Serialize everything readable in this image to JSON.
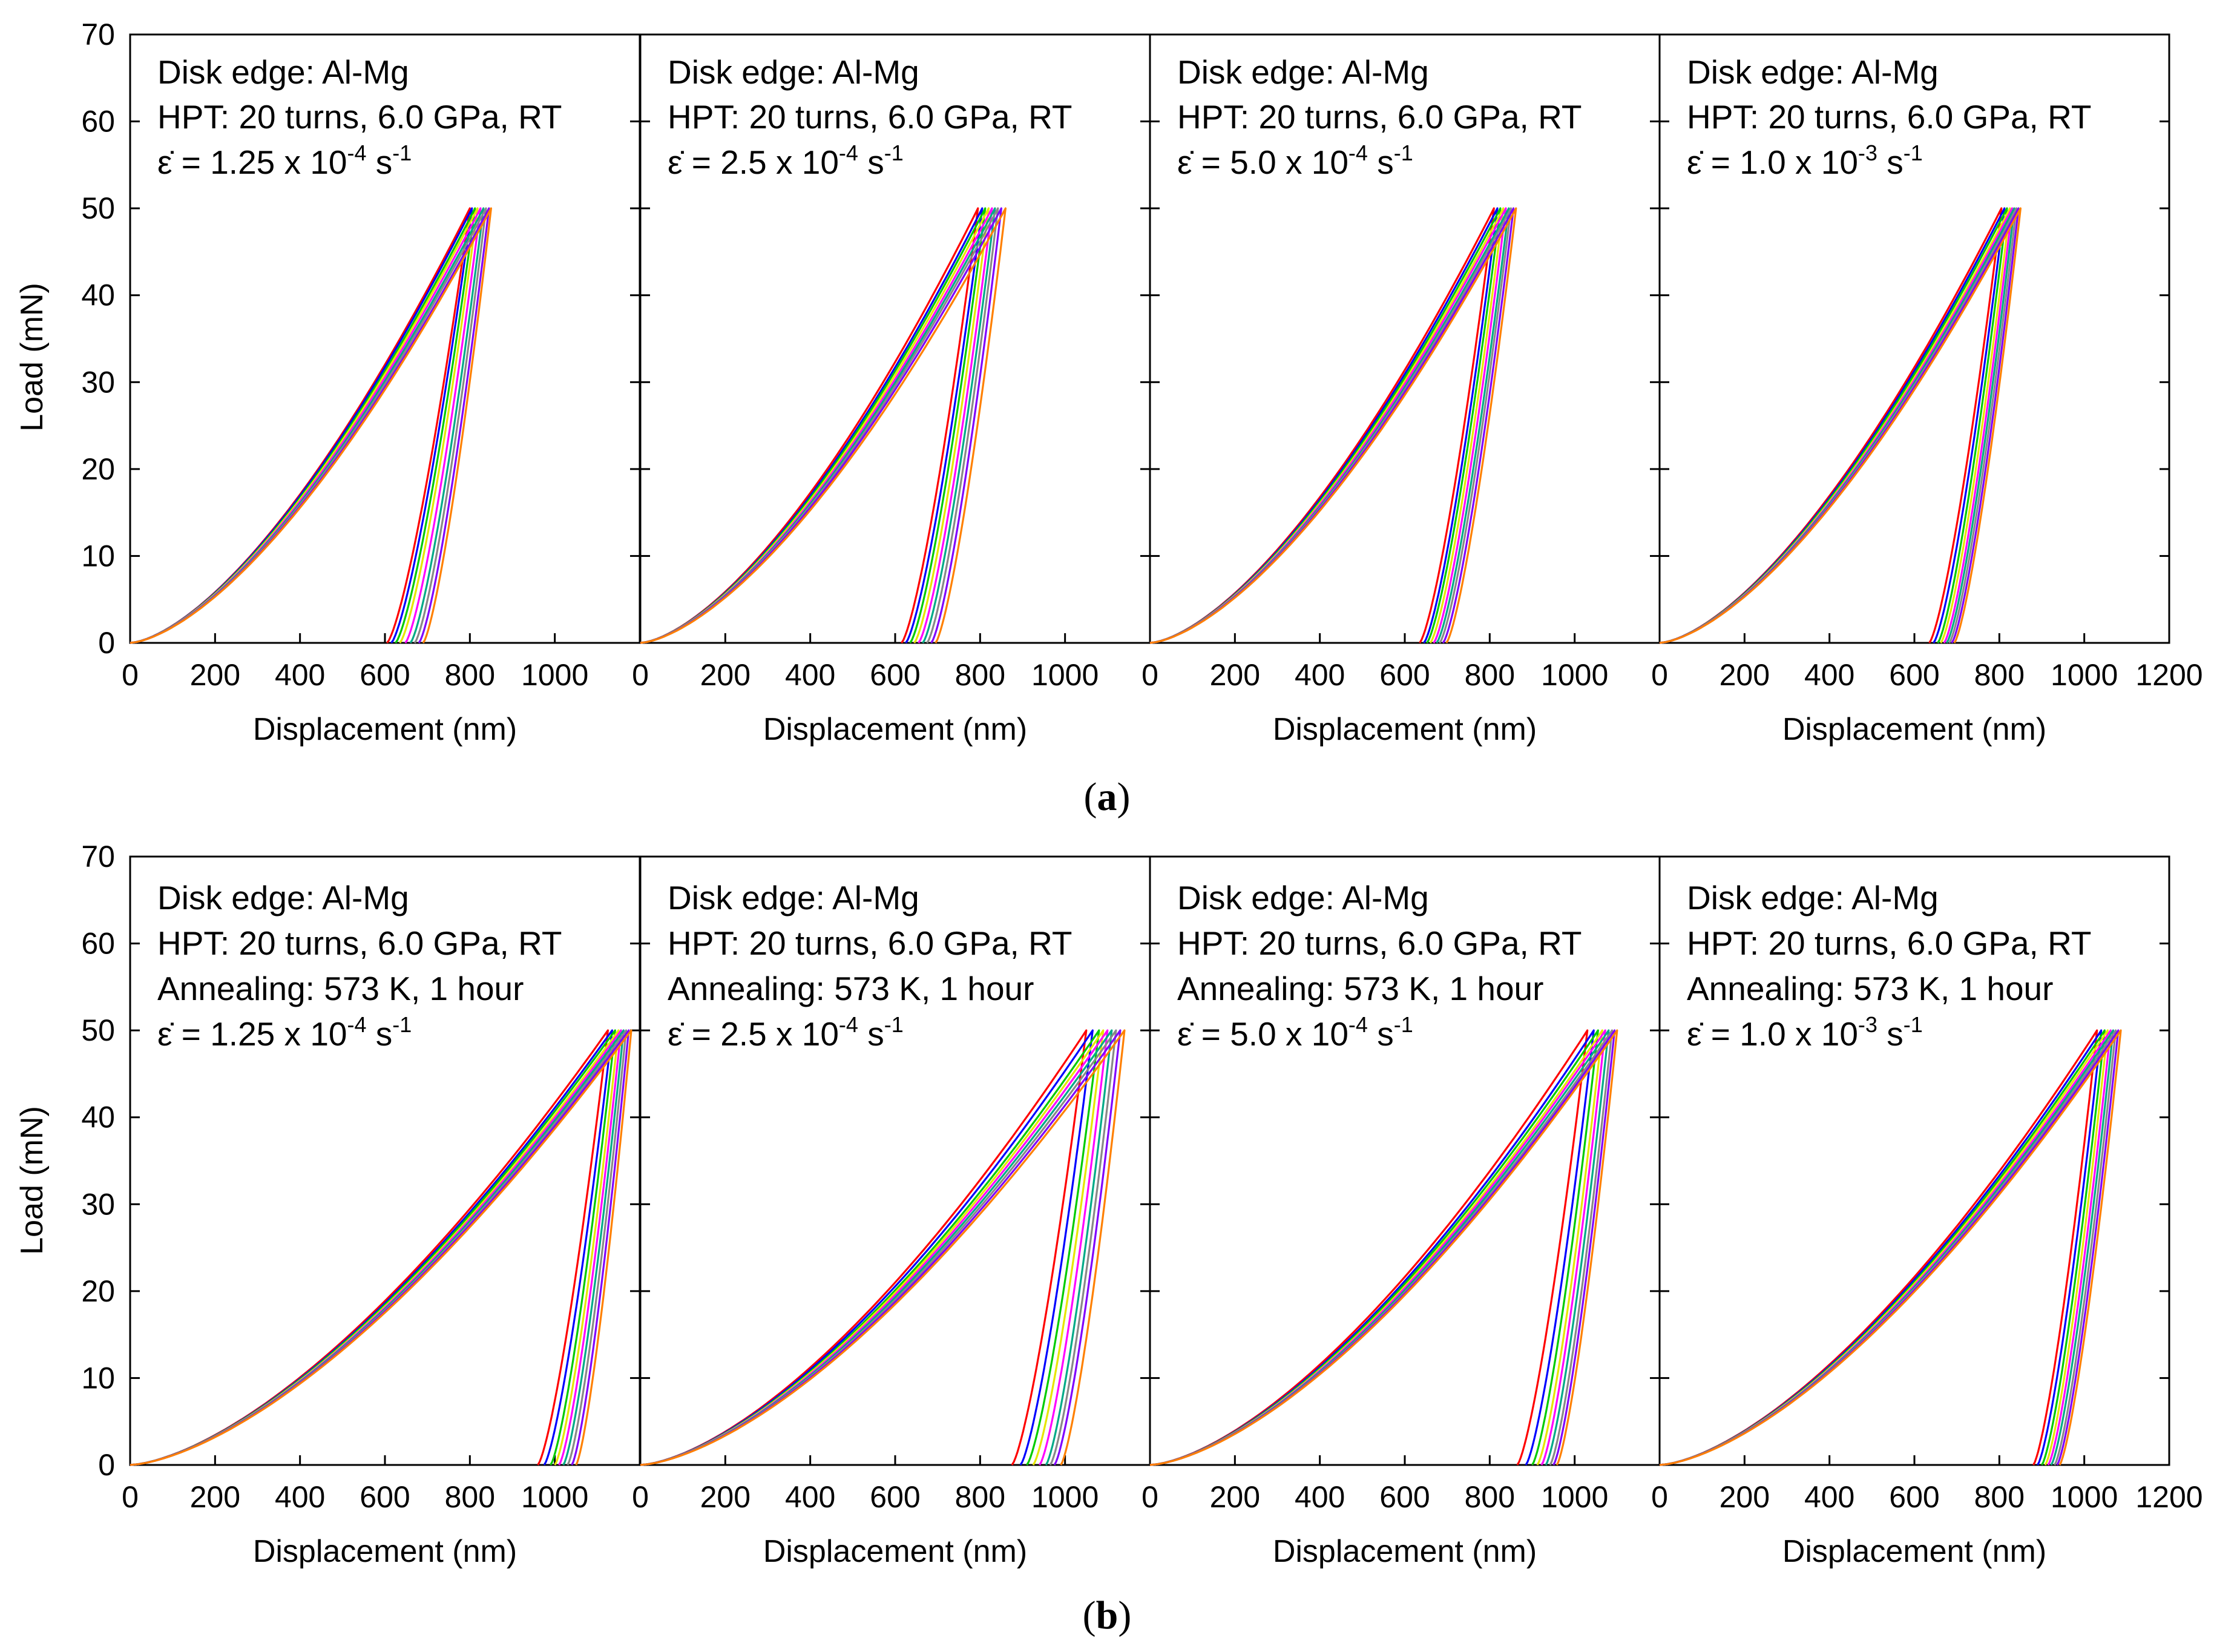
{
  "colors": [
    "#ff0000",
    "#0000ff",
    "#00cc00",
    "#e6e600",
    "#ff00ff",
    "#00aa88",
    "#888888",
    "#8000ff",
    "#ff8000",
    "#000000"
  ],
  "rows": [
    {
      "label_open": "(",
      "label_letter": "a",
      "label_close": ")",
      "ylabel": "Load (mN)",
      "xlabel": "Displacement (nm)"
    },
    {
      "label_open": "(",
      "label_letter": "b",
      "label_close": ")",
      "ylabel": "Load (mN)",
      "xlabel": "Displacement (nm)"
    }
  ],
  "chart_data": [
    {
      "type": "line",
      "row": 0,
      "col": 0,
      "title": "",
      "annotation": [
        "Disk edge: Al-Mg",
        "HPT: 20 turns, 6.0 GPa, RT"
      ],
      "rate": {
        "symbol": "ε̇",
        "prefix": " = 1.25 x 10",
        "exp": "-4",
        "unit": " s",
        "unit_exp": "-1"
      },
      "xlabel": "Displacement (nm)",
      "ylabel": "Load (mN)",
      "xlim": [
        0,
        1200
      ],
      "ylim": [
        0,
        70
      ],
      "xticks": [
        0,
        200,
        400,
        600,
        800,
        1000
      ],
      "yticks": [
        0,
        10,
        20,
        30,
        40,
        50,
        60,
        70
      ],
      "max_load": 50,
      "curves_max_depth": [
        800,
        805,
        812,
        818,
        825,
        832,
        838,
        845,
        850
      ],
      "curves_residual_depth": [
        605,
        615,
        625,
        635,
        648,
        660,
        670,
        680,
        690
      ]
    },
    {
      "type": "line",
      "row": 0,
      "col": 1,
      "title": "",
      "annotation": [
        "Disk edge: Al-Mg",
        "HPT: 20 turns, 6.0 GPa, RT"
      ],
      "rate": {
        "symbol": "ε̇",
        "prefix": " = 2.5 x 10",
        "exp": "-4",
        "unit": " s",
        "unit_exp": "-1"
      },
      "xlabel": "Displacement (nm)",
      "ylabel": "Load (mN)",
      "xlim": [
        0,
        1200
      ],
      "ylim": [
        0,
        70
      ],
      "xticks": [
        0,
        200,
        400,
        600,
        800,
        1000
      ],
      "yticks": [
        0,
        10,
        20,
        30,
        40,
        50,
        60,
        70
      ],
      "max_load": 50,
      "curves_max_depth": [
        795,
        805,
        812,
        820,
        828,
        835,
        842,
        850,
        860
      ],
      "curves_residual_depth": [
        615,
        625,
        635,
        645,
        655,
        665,
        675,
        685,
        695
      ]
    },
    {
      "type": "line",
      "row": 0,
      "col": 2,
      "title": "",
      "annotation": [
        "Disk edge: Al-Mg",
        "HPT: 20 turns, 6.0 GPa, RT"
      ],
      "rate": {
        "symbol": "ε̇",
        "prefix": " = 5.0 x 10",
        "exp": "-4",
        "unit": " s",
        "unit_exp": "-1"
      },
      "xlabel": "Displacement (nm)",
      "ylabel": "Load (mN)",
      "xlim": [
        0,
        1200
      ],
      "ylim": [
        0,
        70
      ],
      "xticks": [
        0,
        200,
        400,
        600,
        800,
        1000
      ],
      "yticks": [
        0,
        10,
        20,
        30,
        40,
        50,
        60,
        70
      ],
      "max_load": 50,
      "curves_max_depth": [
        810,
        818,
        825,
        832,
        838,
        845,
        850,
        856,
        862
      ],
      "curves_residual_depth": [
        635,
        645,
        652,
        660,
        668,
        675,
        682,
        690,
        698
      ]
    },
    {
      "type": "line",
      "row": 0,
      "col": 3,
      "title": "",
      "annotation": [
        "Disk edge: Al-Mg",
        "HPT: 20 turns, 6.0 GPa, RT"
      ],
      "rate": {
        "symbol": "ε̇",
        "prefix": " = 1.0 x 10",
        "exp": "-3",
        "unit": " s",
        "unit_exp": "-1"
      },
      "xlabel": "Displacement (nm)",
      "ylabel": "Load (mN)",
      "xlim": [
        0,
        1200
      ],
      "ylim": [
        0,
        70
      ],
      "xticks": [
        0,
        200,
        400,
        600,
        800,
        1000,
        1200
      ],
      "yticks": [
        0,
        10,
        20,
        30,
        40,
        50,
        60,
        70
      ],
      "max_load": 50,
      "curves_max_depth": [
        805,
        812,
        818,
        825,
        830,
        835,
        840,
        845,
        850
      ],
      "curves_residual_depth": [
        635,
        645,
        655,
        662,
        670,
        676,
        682,
        688,
        694
      ]
    },
    {
      "type": "line",
      "row": 1,
      "col": 0,
      "title": "",
      "annotation": [
        "Disk edge: Al-Mg",
        "HPT: 20 turns, 6.0 GPa, RT",
        "Annealing: 573 K, 1 hour"
      ],
      "rate": {
        "symbol": "ε̇",
        "prefix": " = 1.25 x 10",
        "exp": "-4",
        "unit": " s",
        "unit_exp": "-1"
      },
      "xlabel": "Displacement (nm)",
      "ylabel": "Load (mN)",
      "xlim": [
        0,
        1200
      ],
      "ylim": [
        0,
        70
      ],
      "xticks": [
        0,
        200,
        400,
        600,
        800,
        1000
      ],
      "yticks": [
        0,
        10,
        20,
        30,
        40,
        50,
        60,
        70
      ],
      "max_load": 50,
      "curves_max_depth": [
        1125,
        1135,
        1142,
        1150,
        1156,
        1162,
        1168,
        1174,
        1180
      ],
      "curves_residual_depth": [
        960,
        975,
        990,
        1000,
        1010,
        1020,
        1030,
        1040,
        1050
      ]
    },
    {
      "type": "line",
      "row": 1,
      "col": 1,
      "title": "",
      "annotation": [
        "Disk edge: Al-Mg",
        "HPT: 20 turns, 6.0 GPa, RT",
        "Annealing: 573 K, 1 hour"
      ],
      "rate": {
        "symbol": "ε̇",
        "prefix": " = 2.5 x 10",
        "exp": "-4",
        "unit": " s",
        "unit_exp": "-1"
      },
      "xlabel": "Displacement (nm)",
      "ylabel": "Load (mN)",
      "xlim": [
        0,
        1200
      ],
      "ylim": [
        0,
        70
      ],
      "xticks": [
        0,
        200,
        400,
        600,
        800,
        1000
      ],
      "yticks": [
        0,
        10,
        20,
        30,
        40,
        50,
        60,
        70
      ],
      "max_load": 50,
      "curves_max_depth": [
        1050,
        1065,
        1080,
        1090,
        1100,
        1110,
        1120,
        1130,
        1140
      ],
      "curves_residual_depth": [
        875,
        895,
        910,
        925,
        940,
        955,
        965,
        975,
        990
      ]
    },
    {
      "type": "line",
      "row": 1,
      "col": 2,
      "title": "",
      "annotation": [
        "Disk edge: Al-Mg",
        "HPT: 20 turns, 6.0 GPa, RT",
        "Annealing: 573 K, 1 hour"
      ],
      "rate": {
        "symbol": "ε̇",
        "prefix": " = 5.0 x 10",
        "exp": "-4",
        "unit": " s",
        "unit_exp": "-1"
      },
      "xlabel": "Displacement (nm)",
      "ylabel": "Load (mN)",
      "xlim": [
        0,
        1200
      ],
      "ylim": [
        0,
        70
      ],
      "xticks": [
        0,
        200,
        400,
        600,
        800,
        1000
      ],
      "yticks": [
        0,
        10,
        20,
        30,
        40,
        50,
        60,
        70
      ],
      "max_load": 50,
      "curves_max_depth": [
        1030,
        1045,
        1055,
        1065,
        1072,
        1080,
        1088,
        1094,
        1100
      ],
      "curves_residual_depth": [
        865,
        885,
        900,
        912,
        922,
        932,
        942,
        950,
        958
      ]
    },
    {
      "type": "line",
      "row": 1,
      "col": 3,
      "title": "",
      "annotation": [
        "Disk edge: Al-Mg",
        "HPT: 20 turns, 6.0 GPa, RT",
        "Annealing: 573 K, 1 hour"
      ],
      "rate": {
        "symbol": "ε̇",
        "prefix": " = 1.0 x 10",
        "exp": "-3",
        "unit": " s",
        "unit_exp": "-1"
      },
      "xlabel": "Displacement (nm)",
      "ylabel": "Load (mN)",
      "xlim": [
        0,
        1200
      ],
      "ylim": [
        0,
        70
      ],
      "xticks": [
        0,
        200,
        400,
        600,
        800,
        1000,
        1200
      ],
      "yticks": [
        0,
        10,
        20,
        30,
        40,
        50,
        60,
        70
      ],
      "max_load": 50,
      "curves_max_depth": [
        1030,
        1040,
        1048,
        1055,
        1062,
        1068,
        1074,
        1080,
        1086
      ],
      "curves_residual_depth": [
        880,
        890,
        900,
        908,
        915,
        922,
        930,
        936,
        942
      ]
    }
  ]
}
